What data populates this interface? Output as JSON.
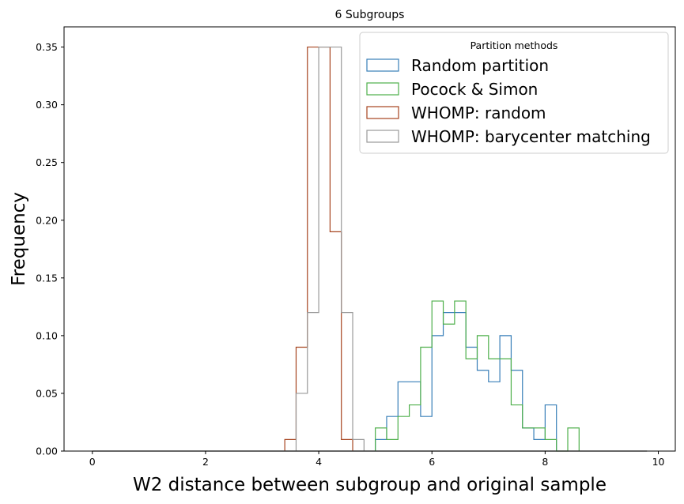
{
  "chart_data": {
    "type": "histogram-step",
    "title": "6 Subgroups",
    "xlabel": "W2 distance between subgroup and original sample",
    "ylabel": "Frequency",
    "xlim": [
      -0.5,
      10.3
    ],
    "ylim": [
      0,
      0.3675
    ],
    "xticks": [
      0,
      2,
      4,
      6,
      8,
      10
    ],
    "xtick_labels": [
      "0",
      "2",
      "4",
      "6",
      "8",
      "10"
    ],
    "yticks": [
      0.0,
      0.05,
      0.1,
      0.15,
      0.2,
      0.25,
      0.3,
      0.35
    ],
    "ytick_labels": [
      "0.00",
      "0.05",
      "0.10",
      "0.15",
      "0.20",
      "0.25",
      "0.30",
      "0.35"
    ],
    "grid": false,
    "legend": {
      "title": "Partition methods",
      "placement": "top-right"
    },
    "baseline_range": [
      0,
      9.8
    ],
    "series": [
      {
        "name": "Random partition",
        "color": "#377eb8",
        "bins": [
          {
            "x0": 5.0,
            "x1": 5.2,
            "y": 0.01
          },
          {
            "x0": 5.2,
            "x1": 5.4,
            "y": 0.03
          },
          {
            "x0": 5.4,
            "x1": 5.8,
            "y": 0.06
          },
          {
            "x0": 5.8,
            "x1": 6.0,
            "y": 0.03
          },
          {
            "x0": 6.0,
            "x1": 6.2,
            "y": 0.1
          },
          {
            "x0": 6.2,
            "x1": 6.6,
            "y": 0.12
          },
          {
            "x0": 6.6,
            "x1": 6.8,
            "y": 0.09
          },
          {
            "x0": 6.8,
            "x1": 7.0,
            "y": 0.07
          },
          {
            "x0": 7.0,
            "x1": 7.2,
            "y": 0.06
          },
          {
            "x0": 7.2,
            "x1": 7.4,
            "y": 0.1
          },
          {
            "x0": 7.4,
            "x1": 7.6,
            "y": 0.07
          },
          {
            "x0": 7.6,
            "x1": 7.8,
            "y": 0.02
          },
          {
            "x0": 7.8,
            "x1": 8.0,
            "y": 0.01
          },
          {
            "x0": 8.0,
            "x1": 8.2,
            "y": 0.04
          }
        ]
      },
      {
        "name": "Pocock & Simon",
        "color": "#4daf4a",
        "bins": [
          {
            "x0": 5.0,
            "x1": 5.2,
            "y": 0.02
          },
          {
            "x0": 5.2,
            "x1": 5.4,
            "y": 0.01
          },
          {
            "x0": 5.4,
            "x1": 5.6,
            "y": 0.03
          },
          {
            "x0": 5.6,
            "x1": 5.8,
            "y": 0.04
          },
          {
            "x0": 5.8,
            "x1": 6.0,
            "y": 0.09
          },
          {
            "x0": 6.0,
            "x1": 6.2,
            "y": 0.13
          },
          {
            "x0": 6.2,
            "x1": 6.4,
            "y": 0.11
          },
          {
            "x0": 6.4,
            "x1": 6.6,
            "y": 0.13
          },
          {
            "x0": 6.6,
            "x1": 6.8,
            "y": 0.08
          },
          {
            "x0": 6.8,
            "x1": 7.0,
            "y": 0.1
          },
          {
            "x0": 7.0,
            "x1": 7.4,
            "y": 0.08
          },
          {
            "x0": 7.4,
            "x1": 7.6,
            "y": 0.04
          },
          {
            "x0": 7.6,
            "x1": 7.8,
            "y": 0.02
          },
          {
            "x0": 7.8,
            "x1": 8.0,
            "y": 0.02
          },
          {
            "x0": 8.0,
            "x1": 8.2,
            "y": 0.01
          },
          {
            "x0": 8.4,
            "x1": 8.6,
            "y": 0.02
          }
        ]
      },
      {
        "name": "WHOMP: random",
        "color": "#a6441f",
        "bins": [
          {
            "x0": 3.4,
            "x1": 3.6,
            "y": 0.01
          },
          {
            "x0": 3.6,
            "x1": 3.8,
            "y": 0.09
          },
          {
            "x0": 3.8,
            "x1": 4.2,
            "y": 0.35
          },
          {
            "x0": 4.2,
            "x1": 4.4,
            "y": 0.19
          },
          {
            "x0": 4.4,
            "x1": 4.6,
            "y": 0.01
          }
        ]
      },
      {
        "name": "WHOMP: barycenter matching",
        "color": "#999999",
        "bins": [
          {
            "x0": 3.6,
            "x1": 3.8,
            "y": 0.05
          },
          {
            "x0": 3.8,
            "x1": 4.0,
            "y": 0.12
          },
          {
            "x0": 4.0,
            "x1": 4.4,
            "y": 0.35
          },
          {
            "x0": 4.4,
            "x1": 4.6,
            "y": 0.12
          },
          {
            "x0": 4.6,
            "x1": 4.8,
            "y": 0.01
          }
        ]
      }
    ]
  }
}
